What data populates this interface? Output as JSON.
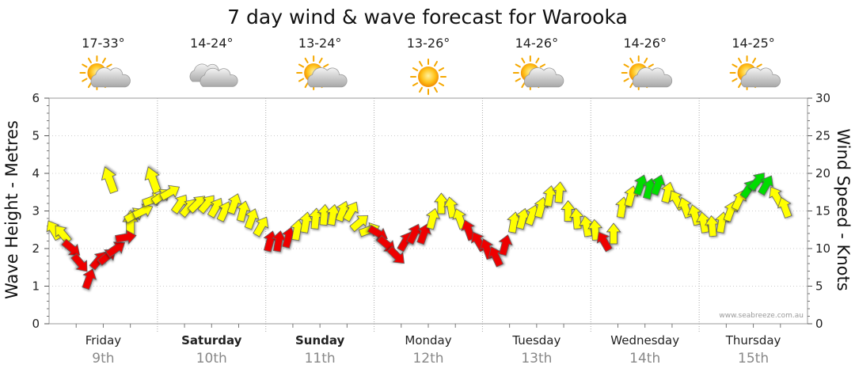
{
  "chart_data": {
    "type": "line",
    "title": "7 day wind & wave forecast for Warooka",
    "ylabel_left": "Wave Height - Metres",
    "ylabel_right": "Wind Speed - Knots",
    "ylim_left": [
      0,
      6
    ],
    "ylim_right": [
      0,
      30
    ],
    "yticks_left": [
      "0",
      "1",
      "2",
      "3",
      "4",
      "5",
      "6"
    ],
    "yticks_right": [
      "0",
      "5",
      "10",
      "15",
      "20",
      "25",
      "30"
    ],
    "credit": "www.seabreeze.com.au",
    "days": [
      {
        "name": "Friday",
        "date": "9th",
        "bold": false,
        "temp": "17-33°",
        "icon": "partly-cloudy-icon"
      },
      {
        "name": "Saturday",
        "date": "10th",
        "bold": true,
        "temp": "14-24°",
        "icon": "cloudy-icon"
      },
      {
        "name": "Sunday",
        "date": "11th",
        "bold": true,
        "temp": "13-24°",
        "icon": "partly-cloudy-icon"
      },
      {
        "name": "Monday",
        "date": "12th",
        "bold": false,
        "temp": "13-26°",
        "icon": "sunny-icon"
      },
      {
        "name": "Tuesday",
        "date": "13th",
        "bold": false,
        "temp": "14-26°",
        "icon": "partly-cloudy-icon"
      },
      {
        "name": "Wednesday",
        "date": "14th",
        "bold": false,
        "temp": "14-26°",
        "icon": "partly-cloudy-icon"
      },
      {
        "name": "Thursday",
        "date": "15th",
        "bold": false,
        "temp": "14-25°",
        "icon": "partly-cloudy-icon"
      }
    ],
    "colors": {
      "light": "#ffff00",
      "moderate": "#00dd00",
      "offshore": "#ee0000",
      "outline": "#555555"
    },
    "wind_series": [
      {
        "t": 0.0,
        "knots": 12.5,
        "dir": 150,
        "c": "light"
      },
      {
        "t": 0.08,
        "knots": 12.0,
        "dir": 140,
        "c": "light"
      },
      {
        "t": 0.17,
        "knots": 10.0,
        "dir": 310,
        "c": "offshore"
      },
      {
        "t": 0.25,
        "knots": 8.0,
        "dir": 320,
        "c": "offshore"
      },
      {
        "t": 0.33,
        "knots": 6.0,
        "dir": 200,
        "c": "offshore"
      },
      {
        "t": 0.42,
        "knots": 8.5,
        "dir": 220,
        "c": "offshore"
      },
      {
        "t": 0.5,
        "knots": 9.0,
        "dir": 230,
        "c": "offshore"
      },
      {
        "t": 0.58,
        "knots": 10.0,
        "dir": 235,
        "c": "offshore"
      },
      {
        "t": 0.67,
        "knots": 11.5,
        "dir": 260,
        "c": "offshore"
      },
      {
        "t": 0.75,
        "knots": 14.5,
        "dir": 240,
        "c": "light"
      },
      {
        "t": 0.83,
        "knots": 15.0,
        "dir": 245,
        "c": "light"
      },
      {
        "t": 0.92,
        "knots": 16.5,
        "dir": 250,
        "c": "light"
      },
      {
        "t": 1.0,
        "knots": 17.0,
        "dir": 235,
        "c": "light"
      },
      {
        "t": 1.08,
        "knots": 17.5,
        "dir": 240,
        "c": "light"
      },
      {
        "t": 1.17,
        "knots": 16.0,
        "dir": 215,
        "c": "light"
      },
      {
        "t": 1.25,
        "knots": 15.5,
        "dir": 220,
        "c": "light"
      },
      {
        "t": 1.33,
        "knots": 16.0,
        "dir": 225,
        "c": "light"
      },
      {
        "t": 1.42,
        "knots": 16.0,
        "dir": 220,
        "c": "light"
      },
      {
        "t": 1.5,
        "knots": 15.5,
        "dir": 210,
        "c": "light"
      },
      {
        "t": 1.58,
        "knots": 15.0,
        "dir": 205,
        "c": "light"
      },
      {
        "t": 1.67,
        "knots": 16.0,
        "dir": 200,
        "c": "light"
      },
      {
        "t": 1.75,
        "knots": 15.0,
        "dir": 195,
        "c": "light"
      },
      {
        "t": 1.83,
        "knots": 14.0,
        "dir": 200,
        "c": "light"
      },
      {
        "t": 1.92,
        "knots": 13.0,
        "dir": 210,
        "c": "light"
      },
      {
        "t": 2.0,
        "knots": 11.0,
        "dir": 195,
        "c": "offshore"
      },
      {
        "t": 2.08,
        "knots": 11.0,
        "dir": 190,
        "c": "offshore"
      },
      {
        "t": 2.17,
        "knots": 11.5,
        "dir": 195,
        "c": "offshore"
      },
      {
        "t": 2.25,
        "knots": 12.5,
        "dir": 190,
        "c": "light"
      },
      {
        "t": 2.33,
        "knots": 13.5,
        "dir": 190,
        "c": "light"
      },
      {
        "t": 2.42,
        "knots": 14.0,
        "dir": 185,
        "c": "light"
      },
      {
        "t": 2.5,
        "knots": 14.5,
        "dir": 185,
        "c": "light"
      },
      {
        "t": 2.58,
        "knots": 14.5,
        "dir": 190,
        "c": "light"
      },
      {
        "t": 2.67,
        "knots": 15.0,
        "dir": 200,
        "c": "light"
      },
      {
        "t": 2.75,
        "knots": 15.0,
        "dir": 210,
        "c": "light"
      },
      {
        "t": 2.83,
        "knots": 13.5,
        "dir": 230,
        "c": "light"
      },
      {
        "t": 2.92,
        "knots": 12.5,
        "dir": 250,
        "c": "light"
      },
      {
        "t": 3.0,
        "knots": 12.0,
        "dir": 300,
        "c": "offshore"
      },
      {
        "t": 3.08,
        "knots": 10.5,
        "dir": 310,
        "c": "offshore"
      },
      {
        "t": 3.17,
        "knots": 9.0,
        "dir": 315,
        "c": "offshore"
      },
      {
        "t": 3.25,
        "knots": 11.0,
        "dir": 210,
        "c": "offshore"
      },
      {
        "t": 3.33,
        "knots": 12.0,
        "dir": 205,
        "c": "offshore"
      },
      {
        "t": 3.42,
        "knots": 12.0,
        "dir": 200,
        "c": "offshore"
      },
      {
        "t": 3.5,
        "knots": 14.0,
        "dir": 195,
        "c": "light"
      },
      {
        "t": 3.58,
        "knots": 16.0,
        "dir": 180,
        "c": "light"
      },
      {
        "t": 3.67,
        "knots": 15.5,
        "dir": 170,
        "c": "light"
      },
      {
        "t": 3.75,
        "knots": 14.0,
        "dir": 160,
        "c": "light"
      },
      {
        "t": 3.83,
        "knots": 12.5,
        "dir": 160,
        "c": "offshore"
      },
      {
        "t": 3.92,
        "knots": 11.0,
        "dir": 150,
        "c": "offshore"
      },
      {
        "t": 4.0,
        "knots": 10.0,
        "dir": 160,
        "c": "offshore"
      },
      {
        "t": 4.08,
        "knots": 9.0,
        "dir": 155,
        "c": "offshore"
      },
      {
        "t": 4.17,
        "knots": 10.5,
        "dir": 195,
        "c": "offshore"
      },
      {
        "t": 4.25,
        "knots": 13.5,
        "dir": 190,
        "c": "light"
      },
      {
        "t": 4.33,
        "knots": 14.0,
        "dir": 195,
        "c": "light"
      },
      {
        "t": 4.42,
        "knots": 14.5,
        "dir": 200,
        "c": "light"
      },
      {
        "t": 4.5,
        "knots": 15.5,
        "dir": 195,
        "c": "light"
      },
      {
        "t": 4.58,
        "knots": 17.0,
        "dir": 190,
        "c": "light"
      },
      {
        "t": 4.67,
        "knots": 17.5,
        "dir": 185,
        "c": "light"
      },
      {
        "t": 4.75,
        "knots": 15.0,
        "dir": 180,
        "c": "light"
      },
      {
        "t": 4.83,
        "knots": 14.0,
        "dir": 175,
        "c": "light"
      },
      {
        "t": 4.92,
        "knots": 13.0,
        "dir": 170,
        "c": "light"
      },
      {
        "t": 5.0,
        "knots": 12.5,
        "dir": 175,
        "c": "light"
      },
      {
        "t": 5.08,
        "knots": 11.0,
        "dir": 150,
        "c": "offshore"
      },
      {
        "t": 5.17,
        "knots": 12.0,
        "dir": 180,
        "c": "light"
      },
      {
        "t": 5.25,
        "knots": 15.5,
        "dir": 190,
        "c": "light"
      },
      {
        "t": 5.33,
        "knots": 17.0,
        "dir": 195,
        "c": "light"
      },
      {
        "t": 5.42,
        "knots": 18.5,
        "dir": 200,
        "c": "moderate"
      },
      {
        "t": 5.5,
        "knots": 18.0,
        "dir": 195,
        "c": "moderate"
      },
      {
        "t": 5.58,
        "knots": 18.5,
        "dir": 200,
        "c": "moderate"
      },
      {
        "t": 5.67,
        "knots": 17.5,
        "dir": 195,
        "c": "light"
      },
      {
        "t": 5.75,
        "knots": 16.5,
        "dir": 150,
        "c": "light"
      },
      {
        "t": 5.83,
        "knots": 15.5,
        "dir": 160,
        "c": "light"
      },
      {
        "t": 5.92,
        "knots": 14.5,
        "dir": 165,
        "c": "light"
      },
      {
        "t": 6.0,
        "knots": 13.5,
        "dir": 170,
        "c": "light"
      },
      {
        "t": 6.08,
        "knots": 13.0,
        "dir": 175,
        "c": "light"
      },
      {
        "t": 6.17,
        "knots": 13.5,
        "dir": 190,
        "c": "light"
      },
      {
        "t": 6.25,
        "knots": 15.0,
        "dir": 200,
        "c": "light"
      },
      {
        "t": 6.33,
        "knots": 16.5,
        "dir": 205,
        "c": "light"
      },
      {
        "t": 6.42,
        "knots": 18.0,
        "dir": 215,
        "c": "moderate"
      },
      {
        "t": 6.5,
        "knots": 19.0,
        "dir": 220,
        "c": "moderate"
      },
      {
        "t": 6.58,
        "knots": 18.5,
        "dir": 210,
        "c": "moderate"
      },
      {
        "t": 6.67,
        "knots": 17.0,
        "dir": 150,
        "c": "light"
      },
      {
        "t": 6.75,
        "knots": 15.5,
        "dir": 160,
        "c": "light"
      }
    ],
    "swell_series": [
      {
        "t": 0.75,
        "height": 2.3,
        "dir": 270
      },
      {
        "t": 0.6,
        "height": 3.5,
        "dir": 250
      },
      {
        "t": 1.0,
        "height": 3.5,
        "dir": 250
      }
    ]
  }
}
